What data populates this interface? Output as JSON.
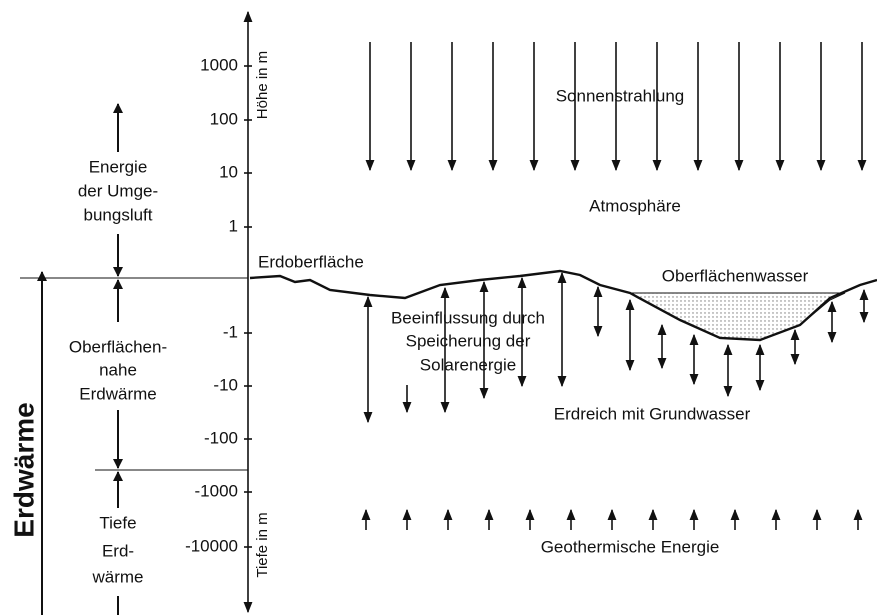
{
  "axis": {
    "height_label": "Höhe in m",
    "depth_label": "Tiefe in m",
    "ticks": [
      "1000",
      "100",
      "10",
      "1",
      "-1",
      "-10",
      "-100",
      "-1000",
      "-10000"
    ]
  },
  "left": {
    "main": "Erdwärme",
    "ambient": [
      "Energie",
      "der Umge-",
      "bungsluft"
    ],
    "near_surface": [
      "Oberflächen-",
      "nahe",
      "Erdwärme"
    ],
    "deep": [
      "Tiefe",
      "Erd-",
      "wärme"
    ]
  },
  "labels": {
    "surface": "Erdoberfläche",
    "solar": "Sonnenstrahlung",
    "atmosphere": "Atmosphäre",
    "surface_water": "Oberflächenwasser",
    "influence": [
      "Beeinflussung durch",
      "Speicherung der",
      "Solarenergie"
    ],
    "soil": "Erdreich mit Grundwasser",
    "geothermal": "Geothermische Energie"
  }
}
